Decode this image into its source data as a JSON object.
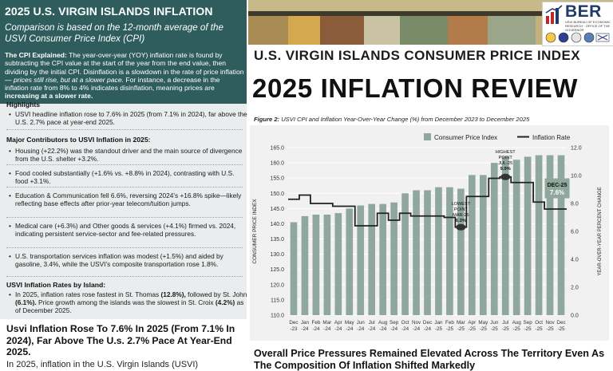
{
  "left": {
    "title": "2025 U.S. VIRGIN ISLANDS  INFLATION",
    "subtitle": "Comparison is based on the 12-month average of the USVI Consumer Price Index (CPI)",
    "explain_lead": "The CPI Explained:",
    "explain_text_1": " The year-over-year (YOY) inflation rate is found by subtracting the CPI value at the start of the year from the end value, then dividing by the initial CPI. Disinflation is a slowdown in the rate of price inflation ",
    "explain_italic": "— prices still rise, but at a slower pace.",
    "explain_text_2": " For instance, a decrease in the inflation rate from 8% to 4% indicates disinflation, meaning prices are ",
    "explain_bold_end": "increasing at a slower rate.",
    "highlights_title": "Highlights",
    "highlight_1": "USVI headline inflation rose to 7.6% in 2025 (from 7.1% in 2024), far above the U.S. 2.7% pace at year-end 2025.",
    "contributors_title": "Major Contributors to USVI Inflation in 2025:",
    "contrib": [
      "Housing (+22.2%) was the standout driver and the main source of divergence from the U.S. shelter +3.2%.",
      "Food cooled substantially (+1.6% vs. +8.8% in 2024), contrasting with U.S. food +3.1%.",
      "Education & Communication fell 6.6%, reversing 2024’s +16.8% spike—likely reflecting base effects after prior-year telecom/tuition jumps.",
      "Medical care (+6.3%) and Other goods & services (+4.1%) firmed vs. 2024, indicating persistent service-sector and fee-related pressures.",
      "U.S. transportation services inflation was modest (+1.5%) and aided by gasoline, 3.4%, while the USVI’s composite transportation rose 1.8%."
    ],
    "island_title": "USVI Inflation Rates by Island:",
    "island_a": "In 2025, inflation rates rose fastest in St. Thomas ",
    "island_st_thomas": "(12.8%),",
    "island_b": " followed by St. John ",
    "island_st_john": "(6.1%).",
    "island_c": " Price growth among the islands was the slowest in St. Croix ",
    "island_st_croix": "(4.2%)",
    "island_d": " as of December 2025.",
    "bottom_headline": "Usvi Inflation Rose To 7.6% In 2025 (From 7.1% In 2024), Far Above The U.s. 2.7% Pace At Year-End 2025.",
    "bottom_text": "In 2025, inflation in the U.S. Virgin Islands (USVI)"
  },
  "banner": {
    "title_line1": "U.S. VIRGIN ISLANDS CONSUMER PRICE INDEX",
    "title_line2": "2025 INFLATION REVIEW",
    "logo_text": "BER",
    "logo_subtext": "USVI BUREAU OF ECONOMIC RESEARCH · OFFICE OF THE GOVERNOR"
  },
  "figure": {
    "label": "Figure 2:",
    "caption": "USVI CPI and Inflation Year-Over-Year Change (%) from December 2023 to December 2025"
  },
  "chart_data": {
    "type": "bar",
    "combo": "bar + line (dual axis)",
    "legend_position": "top",
    "grid": true,
    "xlabel": "",
    "ylabel": "CONSUMER PRICE INDEX",
    "y2label": "YEAR-OVER-YEAR PERCENT CHANGE",
    "ylim": [
      110.0,
      165.0
    ],
    "y2lim": [
      0.0,
      12.0
    ],
    "yticks": [
      "110.0",
      "115.0",
      "120.0",
      "125.0",
      "130.0",
      "135.0",
      "140.0",
      "145.0",
      "150.0",
      "155.0",
      "160.0",
      "165.0"
    ],
    "y2ticks": [
      "0.0",
      "2.0",
      "4.0",
      "6.0",
      "8.0",
      "10.0",
      "12.0"
    ],
    "categories": [
      [
        "Dec",
        "-23"
      ],
      [
        "Jan",
        "-24"
      ],
      [
        "Feb",
        "-24"
      ],
      [
        "Mar",
        "-24"
      ],
      [
        "Apr",
        "-24"
      ],
      [
        "May",
        "-24"
      ],
      [
        "Jun",
        "-24"
      ],
      [
        "Jul",
        "-24"
      ],
      [
        "Aug",
        "-24"
      ],
      [
        "Sep",
        "-24"
      ],
      [
        "Oct",
        "-24"
      ],
      [
        "Nov",
        "-24"
      ],
      [
        "Dec",
        "-24"
      ],
      [
        "Jan",
        "-25"
      ],
      [
        "Feb",
        "-25"
      ],
      [
        "Mar",
        "-25"
      ],
      [
        "Apr",
        "-25"
      ],
      [
        "May",
        "-25"
      ],
      [
        "Jun",
        "-25"
      ],
      [
        "Jul",
        "-25"
      ],
      [
        "Aug",
        "-25"
      ],
      [
        "Sep",
        "-25"
      ],
      [
        "Oct",
        "-25"
      ],
      [
        "Nov",
        "-25"
      ],
      [
        "Dec",
        "-25"
      ]
    ],
    "series": [
      {
        "name": "Consumer Price Index",
        "kind": "bar",
        "color": "#8fa79c",
        "values": [
          140.5,
          142.5,
          143.0,
          143.0,
          143.5,
          145.0,
          146.0,
          146.5,
          146.5,
          147.0,
          150.0,
          151.0,
          151.0,
          152.0,
          152.0,
          151.5,
          156.0,
          156.0,
          160.0,
          162.0,
          161.0,
          162.0,
          162.5,
          162.5,
          162.5
        ]
      },
      {
        "name": "Inflation Rate",
        "kind": "line",
        "color": "#222222",
        "values": [
          8.3,
          8.6,
          8.0,
          8.0,
          7.8,
          7.8,
          6.4,
          6.4,
          7.3,
          6.8,
          7.3,
          7.1,
          7.1,
          7.1,
          7.0,
          6.3,
          8.5,
          8.5,
          9.8,
          9.9,
          9.5,
          9.5,
          8.1,
          7.6,
          7.6
        ]
      }
    ],
    "annotations": [
      {
        "label": [
          "HIGHEST",
          "POINT",
          "JUL-25"
        ],
        "value_label": "9.9%",
        "index": 19
      },
      {
        "label": [
          "LOWEST",
          "POINT",
          "MAR-25"
        ],
        "value_label": "6.3%",
        "index": 15
      },
      {
        "label": [
          "DEC-25"
        ],
        "value_label": "7.6%",
        "index": 24
      }
    ]
  },
  "right_headline": "Overall Price Pressures Remained Elevated Across The Territory Even As The Composition Of Inflation Shifted Markedly"
}
